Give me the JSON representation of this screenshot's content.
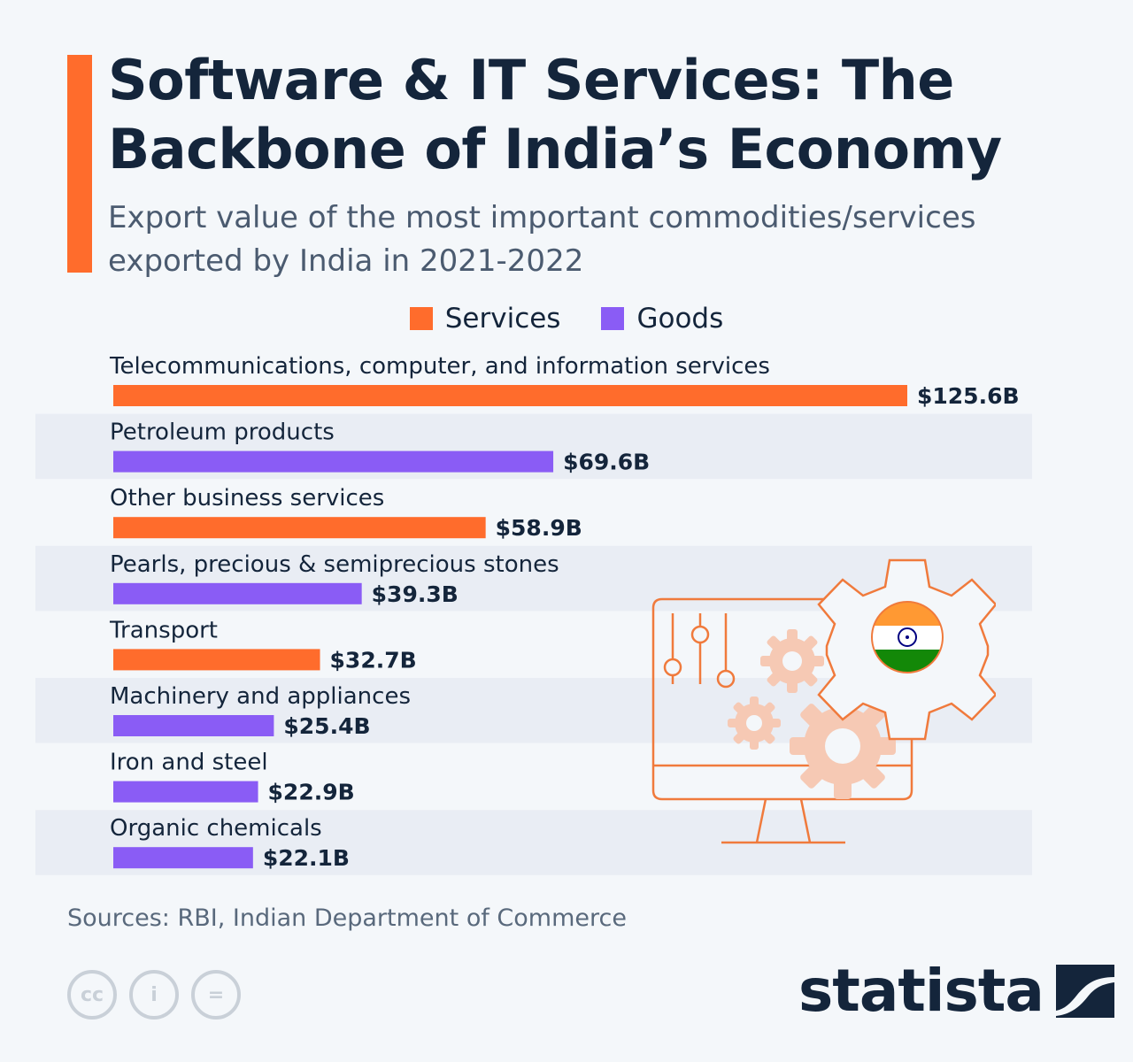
{
  "header": {
    "title": "Software & IT Services: The Backbone of India’s Economy",
    "subtitle": "Export value of the most important commodities/services exported by India in 2021-2022"
  },
  "legend": [
    {
      "label": "Services",
      "color": "#ff6c2c"
    },
    {
      "label": "Goods",
      "color": "#8a5cf5"
    }
  ],
  "chart_data": {
    "type": "bar",
    "orientation": "horizontal",
    "title": "Software & IT Services: The Backbone of India’s Economy",
    "subtitle": "Export value of the most important commodities/services exported by India in 2021-2022",
    "unit": "billion USD",
    "categories": [
      "Telecommunications, computer, and information services",
      "Petroleum products",
      "Other business services",
      "Pearls, precious & semiprecious stones",
      "Transport",
      "Machinery and appliances",
      "Iron and steel",
      "Organic chemicals"
    ],
    "values": [
      125.6,
      69.6,
      58.9,
      39.3,
      32.7,
      25.4,
      22.9,
      22.1
    ],
    "value_labels": [
      "$125.6B",
      "$69.6B",
      "$58.9B",
      "$39.3B",
      "$32.7B",
      "$25.4B",
      "$22.9B",
      "$22.1B"
    ],
    "kinds": [
      "Services",
      "Goods",
      "Services",
      "Goods",
      "Services",
      "Goods",
      "Goods",
      "Goods"
    ],
    "series_colors": {
      "Services": "#ff6c2c",
      "Goods": "#8a5cf5"
    },
    "xlim": [
      0,
      125.6
    ],
    "legend_position": "top-center",
    "grid": false
  },
  "footer": {
    "source": "Sources: RBI, Indian Department of Commerce",
    "license_icons": [
      {
        "icon": "cc-icon",
        "glyph": "cc"
      },
      {
        "icon": "person-icon",
        "glyph": "i"
      },
      {
        "icon": "equals-icon",
        "glyph": "="
      }
    ],
    "brand": "statista",
    "brand_icon": "statista-logo-icon"
  },
  "colors": {
    "accent": "#ff6c2c",
    "goods": "#8a5cf5",
    "text": "#14253b",
    "stripe": "#e9edf4",
    "background": "#f4f7fa"
  }
}
